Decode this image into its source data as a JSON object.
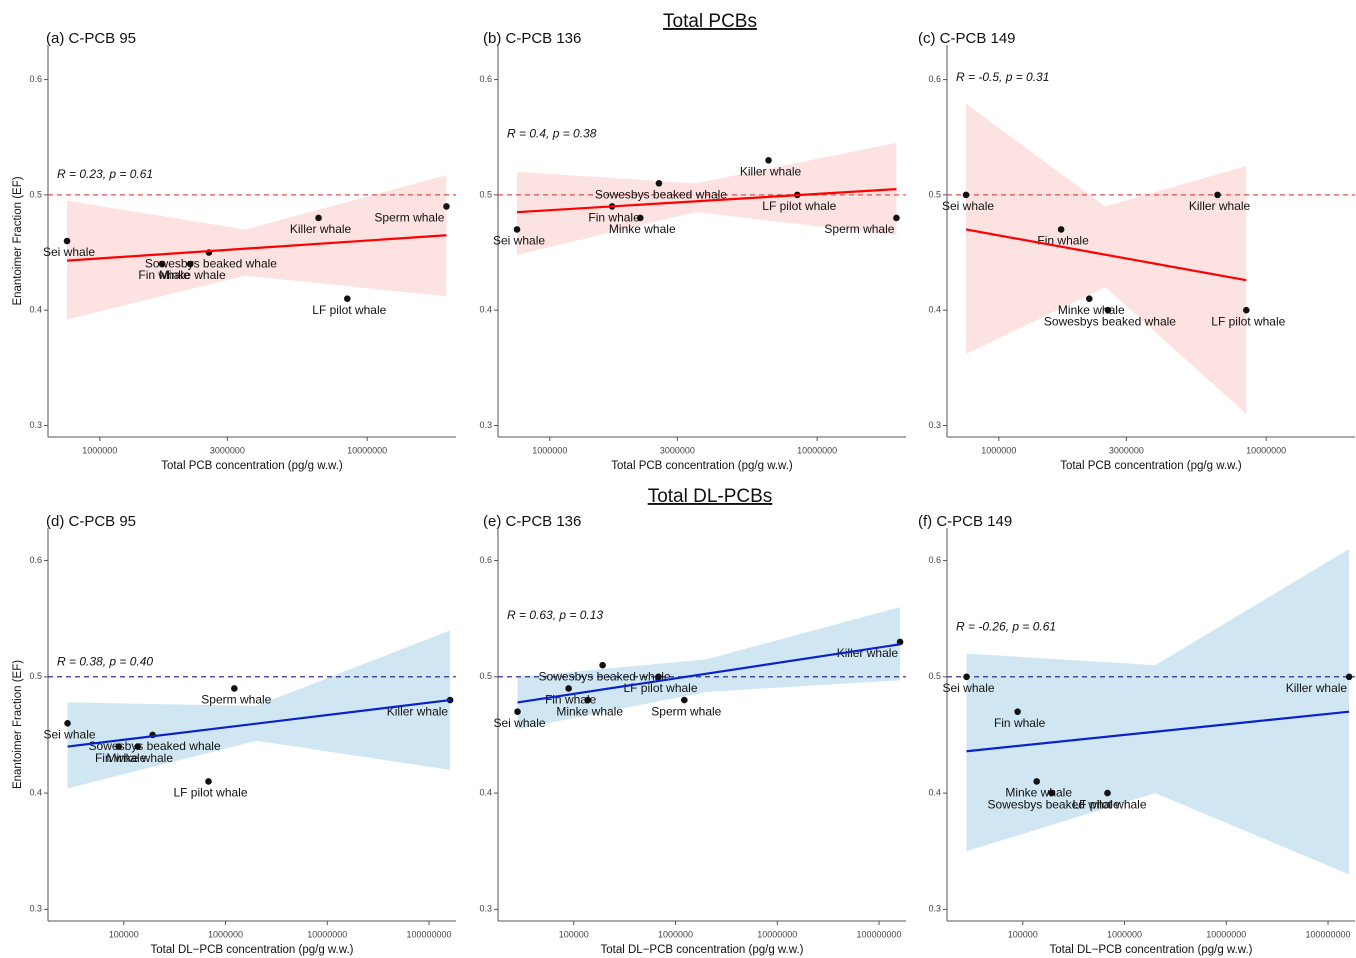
{
  "sections": [
    "Total PCBs",
    "Total DL-PCBs"
  ],
  "chart_data": [
    {
      "type": "scatter",
      "title": "(a) C-PCB 95",
      "x_label": "Total PCB concentration (pg/g w.w.)",
      "y_label": "Enantoimer Fraction (EF)",
      "annotation": "R = 0.23, p = 0.61",
      "log_x": true,
      "xlim": [
        640000,
        21500000
      ],
      "xticks": [
        1000000,
        3000000,
        10000000
      ],
      "ylim": [
        0.29,
        0.63
      ],
      "yticks": [
        0.3,
        0.4,
        0.5,
        0.6
      ],
      "hline": 0.5,
      "point_labels": [
        "Sei whale",
        "Fin whale",
        "Minke whale",
        "Sowesbys beaked whale",
        "Killer whale",
        "LF pilot whale",
        "Sperm whale"
      ],
      "x": [
        754000,
        1710000,
        2180000,
        2560000,
        6580000,
        8430000,
        19800000
      ],
      "values": [
        0.46,
        0.44,
        0.44,
        0.45,
        0.48,
        0.41,
        0.49
      ],
      "fit": {
        "x": [
          754000,
          19800000
        ],
        "y": [
          0.443,
          0.465
        ]
      },
      "band": {
        "x": [
          754000,
          3500000,
          19800000
        ],
        "upper": [
          0.495,
          0.47,
          0.517
        ],
        "lower": [
          0.392,
          0.43,
          0.412
        ]
      },
      "point_color": "#111111",
      "fit_color": "#ff0000",
      "band_color": "#fbcaca",
      "ref_color": "#e05050"
    },
    {
      "type": "scatter",
      "title": "(b) C-PCB 136",
      "x_label": "Total PCB concentration (pg/g w.w.)",
      "annotation": "R = 0.4, p = 0.38",
      "log_x": true,
      "xlim": [
        640000,
        21500000
      ],
      "xticks": [
        1000000,
        3000000,
        10000000
      ],
      "ylim": [
        0.29,
        0.63
      ],
      "yticks": [
        0.3,
        0.4,
        0.5,
        0.6
      ],
      "hline": 0.5,
      "point_labels": [
        "Sei whale",
        "Fin whale",
        "Minke whale",
        "Sowesbys beaked whale",
        "Killer whale",
        "LF pilot whale",
        "Sperm whale"
      ],
      "x": [
        754000,
        1710000,
        2180000,
        2560000,
        6580000,
        8430000,
        19800000
      ],
      "values": [
        0.47,
        0.49,
        0.48,
        0.51,
        0.53,
        0.5,
        0.48
      ],
      "fit": {
        "x": [
          754000,
          19800000
        ],
        "y": [
          0.485,
          0.505
        ]
      },
      "band": {
        "x": [
          754000,
          3500000,
          19800000
        ],
        "upper": [
          0.52,
          0.51,
          0.545
        ],
        "lower": [
          0.448,
          0.485,
          0.465
        ]
      },
      "point_color": "#111111",
      "fit_color": "#ff0000",
      "band_color": "#fbcaca",
      "ref_color": "#e05050"
    },
    {
      "type": "scatter",
      "title": "(c) C-PCB 149",
      "x_label": "Total PCB concentration (pg/g w.w.)",
      "annotation": "R = -0.5, p = 0.31",
      "log_x": true,
      "xlim": [
        640000,
        21500000
      ],
      "xticks": [
        1000000,
        3000000,
        10000000
      ],
      "ylim": [
        0.29,
        0.63
      ],
      "yticks": [
        0.3,
        0.4,
        0.5,
        0.6
      ],
      "hline": 0.5,
      "point_labels": [
        "Sei whale",
        "Fin whale",
        "Minke whale",
        "Sowesbys beaked whale",
        "Killer whale",
        "LF pilot whale"
      ],
      "x": [
        754000,
        1710000,
        2180000,
        2560000,
        6580000,
        8430000
      ],
      "values": [
        0.5,
        0.47,
        0.41,
        0.4,
        0.5,
        0.4
      ],
      "fit": {
        "x": [
          754000,
          8430000
        ],
        "y": [
          0.47,
          0.426
        ]
      },
      "band": {
        "x": [
          754000,
          2500000,
          8430000
        ],
        "upper": [
          0.579,
          0.49,
          0.525
        ],
        "lower": [
          0.362,
          0.42,
          0.31
        ]
      },
      "point_color": "#111111",
      "fit_color": "#ff0000",
      "band_color": "#fbcaca",
      "ref_color": "#e05050"
    },
    {
      "type": "scatter",
      "title": "(d) C-PCB 95",
      "x_label": "Total DL−PCB concentration (pg/g w.w.)",
      "y_label": "Enantoimer Fraction (EF)",
      "annotation": "R = 0.38, p = 0.40",
      "log_x": true,
      "xlim": [
        18000,
        184000000
      ],
      "xticks": [
        100000,
        1000000,
        10000000,
        100000000
      ],
      "ylim": [
        0.29,
        0.628
      ],
      "yticks": [
        0.3,
        0.4,
        0.5,
        0.6
      ],
      "hline": 0.5,
      "point_labels": [
        "Sei whale",
        "Fin whale",
        "Minke whale",
        "Sowesbys beaked whale",
        "LF pilot whale",
        "Sperm whale",
        "Killer whale"
      ],
      "x": [
        28000,
        89000,
        137000,
        192000,
        680000,
        1220000,
        161000000
      ],
      "values": [
        0.46,
        0.44,
        0.44,
        0.45,
        0.41,
        0.49,
        0.48
      ],
      "fit": {
        "x": [
          28000,
          161000000
        ],
        "y": [
          0.44,
          0.48
        ]
      },
      "band": {
        "x": [
          28000,
          2000000,
          161000000
        ],
        "upper": [
          0.478,
          0.475,
          0.54
        ],
        "lower": [
          0.404,
          0.445,
          0.42
        ]
      },
      "point_color": "#111111",
      "fit_color": "#0a22cc",
      "band_color": "#a9d3ea",
      "ref_color": "#1a1a80"
    },
    {
      "type": "scatter",
      "title": "(e) C-PCB 136",
      "x_label": "Total DL−PCB concentration (pg/g w.w.)",
      "annotation": "R = 0.63, p = 0.13",
      "log_x": true,
      "xlim": [
        18000,
        184000000
      ],
      "xticks": [
        100000,
        1000000,
        10000000,
        100000000
      ],
      "ylim": [
        0.29,
        0.628
      ],
      "yticks": [
        0.3,
        0.4,
        0.5,
        0.6
      ],
      "hline": 0.5,
      "point_labels": [
        "Sei whale",
        "Fin whale",
        "Minke whale",
        "Sowesbys beaked whale",
        "LF pilot whale",
        "Sperm whale",
        "Killer whale"
      ],
      "x": [
        28000,
        89000,
        137000,
        192000,
        680000,
        1220000,
        161000000
      ],
      "values": [
        0.47,
        0.49,
        0.48,
        0.51,
        0.5,
        0.48,
        0.53
      ],
      "fit": {
        "x": [
          28000,
          161000000
        ],
        "y": [
          0.478,
          0.528
        ]
      },
      "band": {
        "x": [
          28000,
          2000000,
          161000000
        ],
        "upper": [
          0.5,
          0.515,
          0.56
        ],
        "lower": [
          0.455,
          0.487,
          0.497
        ]
      },
      "point_color": "#111111",
      "fit_color": "#0a22cc",
      "band_color": "#a9d3ea",
      "ref_color": "#1a1a80"
    },
    {
      "type": "scatter",
      "title": "(f) C-PCB 149",
      "x_label": "Total DL−PCB concentration (pg/g w.w.)",
      "annotation": "R = -0.26, p = 0.61",
      "log_x": true,
      "xlim": [
        18000,
        184000000
      ],
      "xticks": [
        100000,
        1000000,
        10000000,
        100000000
      ],
      "ylim": [
        0.29,
        0.628
      ],
      "yticks": [
        0.3,
        0.4,
        0.5,
        0.6
      ],
      "hline": 0.5,
      "point_labels": [
        "Sei whale",
        "Fin whale",
        "Minke whale",
        "Sowesbys beaked whale",
        "LF pilot whale",
        "Killer whale"
      ],
      "x": [
        28000,
        89000,
        137000,
        192000,
        680000,
        161000000
      ],
      "values": [
        0.5,
        0.47,
        0.41,
        0.4,
        0.4,
        0.5
      ],
      "fit": {
        "x": [
          28000,
          161000000
        ],
        "y": [
          0.436,
          0.47
        ]
      },
      "band": {
        "x": [
          28000,
          2000000,
          161000000
        ],
        "upper": [
          0.52,
          0.51,
          0.61
        ],
        "lower": [
          0.35,
          0.4,
          0.33
        ]
      },
      "point_color": "#111111",
      "fit_color": "#0a22cc",
      "band_color": "#a9d3ea",
      "ref_color": "#1a1a80"
    }
  ]
}
